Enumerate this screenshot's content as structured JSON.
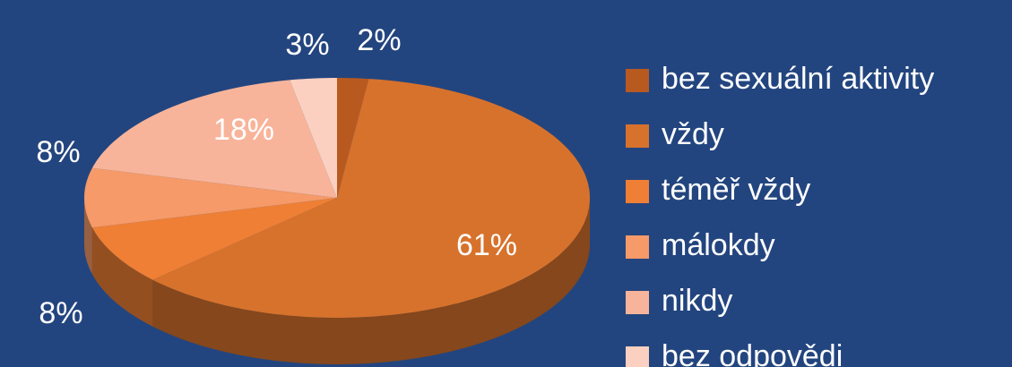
{
  "chart_data": {
    "type": "pie",
    "categories": [
      "bez sexuální aktivity",
      "vždy",
      "téměř vždy",
      "málokdy",
      "nikdy",
      "bez odpovědi"
    ],
    "values": [
      2,
      61,
      8,
      8,
      18,
      3
    ],
    "value_labels": [
      "2%",
      "61%",
      "8%",
      "8%",
      "18%",
      "3%"
    ],
    "colors": [
      "#b85a20",
      "#d7722c",
      "#ee7f35",
      "#f59a68",
      "#f8b49a",
      "#fbd0c0"
    ]
  }
}
